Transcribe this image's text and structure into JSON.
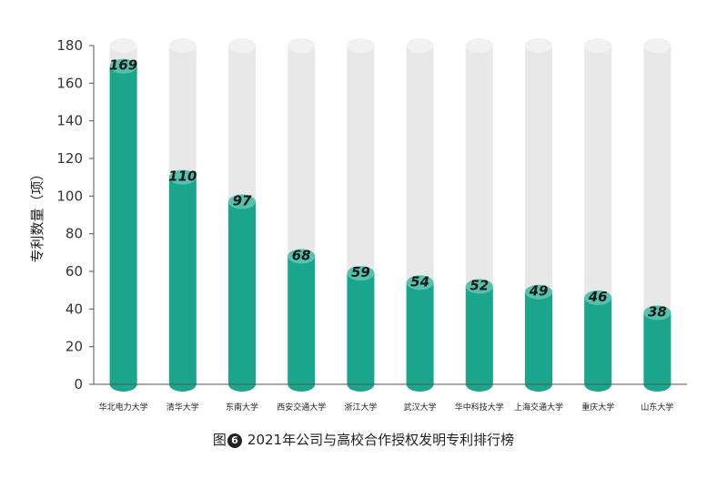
{
  "chart_data": {
    "type": "bar",
    "categories": [
      "华北电力大学",
      "清华大学",
      "东南大学",
      "西安交通大学",
      "浙江大学",
      "武汉大学",
      "华中科技大学",
      "上海交通大学",
      "重庆大学",
      "山东大学"
    ],
    "values": [
      169,
      110,
      97,
      68,
      59,
      54,
      52,
      49,
      46,
      38
    ],
    "ylabel": "专利数量（项）",
    "xlabel": "",
    "ylim": [
      0,
      180
    ],
    "yticks": [
      0,
      20,
      40,
      60,
      80,
      100,
      120,
      140,
      160,
      180
    ],
    "grid": false,
    "bar_style": "cylinder",
    "colors": {
      "bar": "#1aa68c",
      "bar_top": "#55c2ad",
      "background_bar": "#e8e8e8",
      "axis": "#555555"
    }
  },
  "caption": {
    "prefix": "图",
    "number": "6",
    "text": "2021年公司与高校合作授权发明专利排行榜"
  }
}
